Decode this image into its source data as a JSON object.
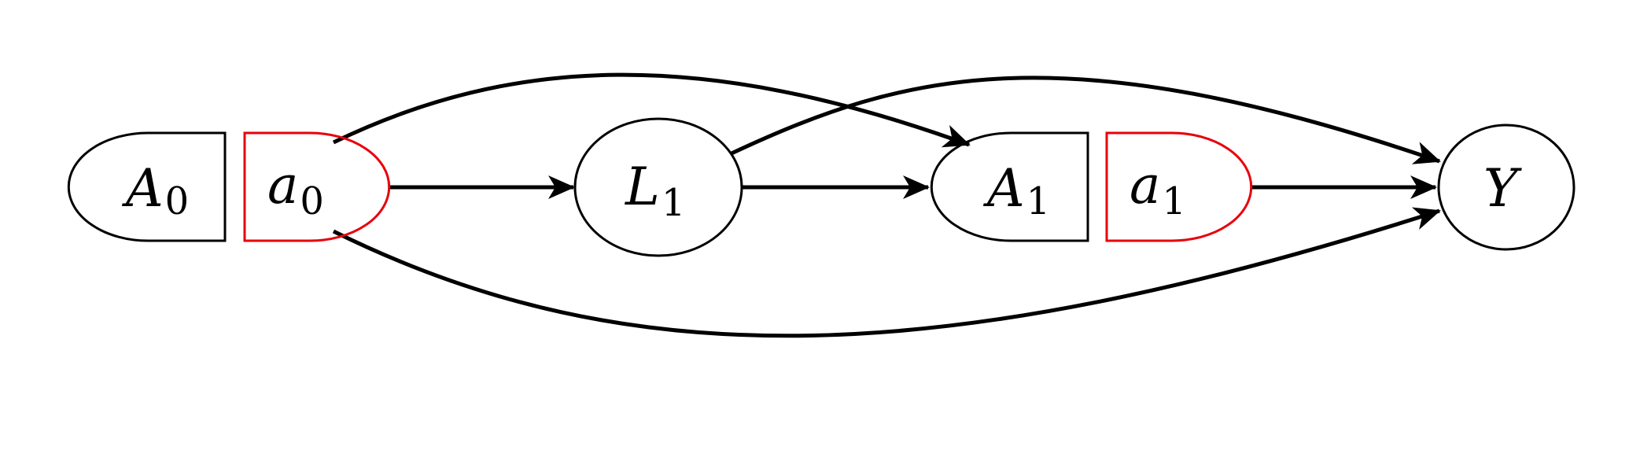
{
  "nodes": {
    "A0": {
      "main": "A",
      "sub": "0"
    },
    "a0": {
      "main": "a",
      "sub": "0"
    },
    "L1": {
      "main": "L",
      "sub": "1"
    },
    "A1": {
      "main": "A",
      "sub": "1"
    },
    "a1": {
      "main": "a",
      "sub": "1"
    },
    "Y": {
      "main": "Y",
      "sub": ""
    }
  },
  "edges": [
    {
      "from": "a0",
      "to": "L1"
    },
    {
      "from": "a0",
      "to": "A1"
    },
    {
      "from": "a0",
      "to": "Y"
    },
    {
      "from": "L1",
      "to": "A1"
    },
    {
      "from": "L1",
      "to": "Y"
    },
    {
      "from": "a1",
      "to": "Y"
    }
  ],
  "colors": {
    "natural_node": "#000000",
    "intervention_node": "#e8000b",
    "edge": "#000000"
  }
}
